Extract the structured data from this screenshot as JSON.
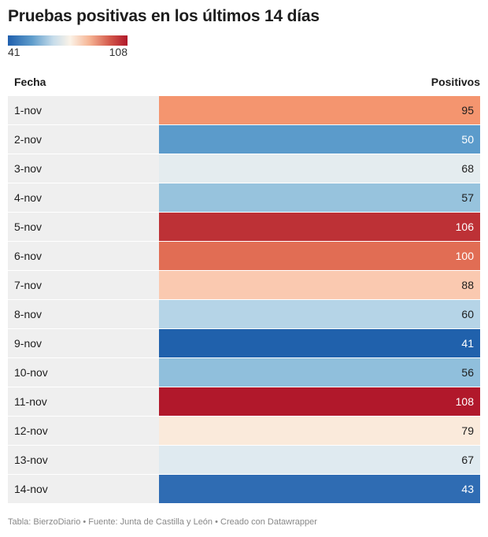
{
  "header": {
    "title": "Pruebas positivas en los últimos 14 días"
  },
  "legend": {
    "min_label": "41",
    "max_label": "108",
    "color_low": "#1f5fad",
    "color_high": "#b0172a"
  },
  "table": {
    "col_fecha": "Fecha",
    "col_positivos": "Positivos"
  },
  "footer": {
    "text": "Tabla: BierzoDiario • Fuente: Junta de Castilla y León • Creado con Datawrapper"
  },
  "chart_data": {
    "type": "table",
    "title": "Pruebas positivas en los últimos 14 días",
    "columns": [
      "Fecha",
      "Positivos"
    ],
    "color_scale": {
      "min": 41,
      "max": 108
    },
    "rows": [
      {
        "fecha": "1-nov",
        "positivos": 95,
        "color": "#f4956f"
      },
      {
        "fecha": "2-nov",
        "positivos": 50,
        "color": "#5b9bcb"
      },
      {
        "fecha": "3-nov",
        "positivos": 68,
        "color": "#e4ecef"
      },
      {
        "fecha": "4-nov",
        "positivos": 57,
        "color": "#97c3dd"
      },
      {
        "fecha": "5-nov",
        "positivos": 106,
        "color": "#bd3136"
      },
      {
        "fecha": "6-nov",
        "positivos": 100,
        "color": "#e16d54"
      },
      {
        "fecha": "7-nov",
        "positivos": 88,
        "color": "#fac9b0"
      },
      {
        "fecha": "8-nov",
        "positivos": 60,
        "color": "#b5d4e7"
      },
      {
        "fecha": "9-nov",
        "positivos": 41,
        "color": "#2061ac"
      },
      {
        "fecha": "10-nov",
        "positivos": 56,
        "color": "#90bfdc"
      },
      {
        "fecha": "11-nov",
        "positivos": 108,
        "color": "#b1182b"
      },
      {
        "fecha": "12-nov",
        "positivos": 79,
        "color": "#faeadb"
      },
      {
        "fecha": "13-nov",
        "positivos": 67,
        "color": "#dfeaf0"
      },
      {
        "fecha": "14-nov",
        "positivos": 43,
        "color": "#2f6cb3"
      }
    ]
  }
}
